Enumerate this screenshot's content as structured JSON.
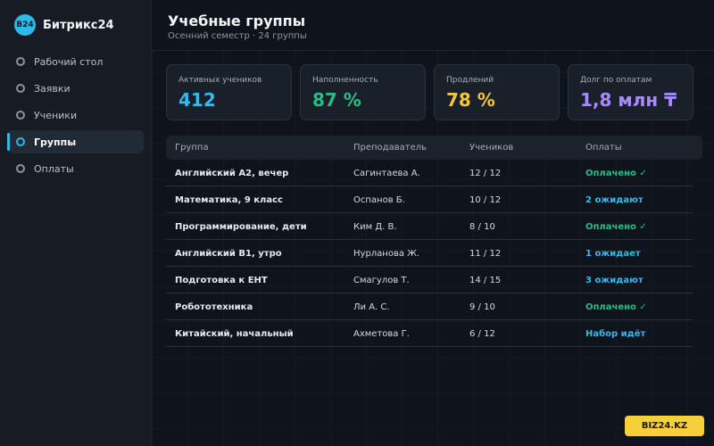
{
  "app": {
    "logo_mark": "B24",
    "name": "Битрикс24"
  },
  "sidebar": {
    "items": [
      {
        "label": "Рабочий стол",
        "icon": "circle-icon",
        "active": false
      },
      {
        "label": "Заявки",
        "icon": "circle-icon",
        "active": false
      },
      {
        "label": "Ученики",
        "icon": "circle-icon",
        "active": false
      },
      {
        "label": "Группы",
        "icon": "circle-icon",
        "active": true
      },
      {
        "label": "Оплаты",
        "icon": "circle-icon",
        "active": false
      }
    ]
  },
  "header": {
    "title": "Учебные группы",
    "subtitle": "Осенний семестр · 24 группы"
  },
  "stats": [
    {
      "label": "Активных учеников",
      "value": "412",
      "color": "#39b8ec"
    },
    {
      "label": "Наполненность",
      "value": "87 %",
      "color": "#2dbb84"
    },
    {
      "label": "Продлений",
      "value": "78 %",
      "color": "#f4c542"
    },
    {
      "label": "Долг по оплатам",
      "value": "1,8 млн ₸",
      "color": "#a78bfa"
    }
  ],
  "table": {
    "headers": {
      "group": "Группа",
      "teacher": "Преподаватель",
      "students": "Учеников",
      "payments": "Оплаты"
    },
    "rows": [
      {
        "group": "Английский A2, вечер",
        "teacher": "Сагинтаева А.",
        "students": "12 / 12",
        "payments": "Оплачено ✓",
        "status_color": "#2dbb84"
      },
      {
        "group": "Математика, 9 класс",
        "teacher": "Оспанов Б.",
        "students": "10 / 12",
        "payments": "2 ожидают",
        "status_color": "#39b8ec"
      },
      {
        "group": "Программирование, дети",
        "teacher": "Ким Д. В.",
        "students": "8 / 10",
        "payments": "Оплачено ✓",
        "status_color": "#2dbb84"
      },
      {
        "group": "Английский B1, утро",
        "teacher": "Нурланова Ж.",
        "students": "11 / 12",
        "payments": "1 ожидает",
        "status_color": "#39b8ec"
      },
      {
        "group": "Подготовка к ЕНТ",
        "teacher": "Смагулов Т.",
        "students": "14 / 15",
        "payments": "3 ожидают",
        "status_color": "#39b8ec"
      },
      {
        "group": "Робототехника",
        "teacher": "Ли А. С.",
        "students": "9 / 10",
        "payments": "Оплачено ✓",
        "status_color": "#2dbb84"
      },
      {
        "group": "Китайский, начальный",
        "teacher": "Ахметова Г.",
        "students": "6 / 12",
        "payments": "Набор идёт",
        "status_color": "#39b8ec"
      }
    ]
  },
  "footer": {
    "badge": "BIZ24.KZ"
  }
}
